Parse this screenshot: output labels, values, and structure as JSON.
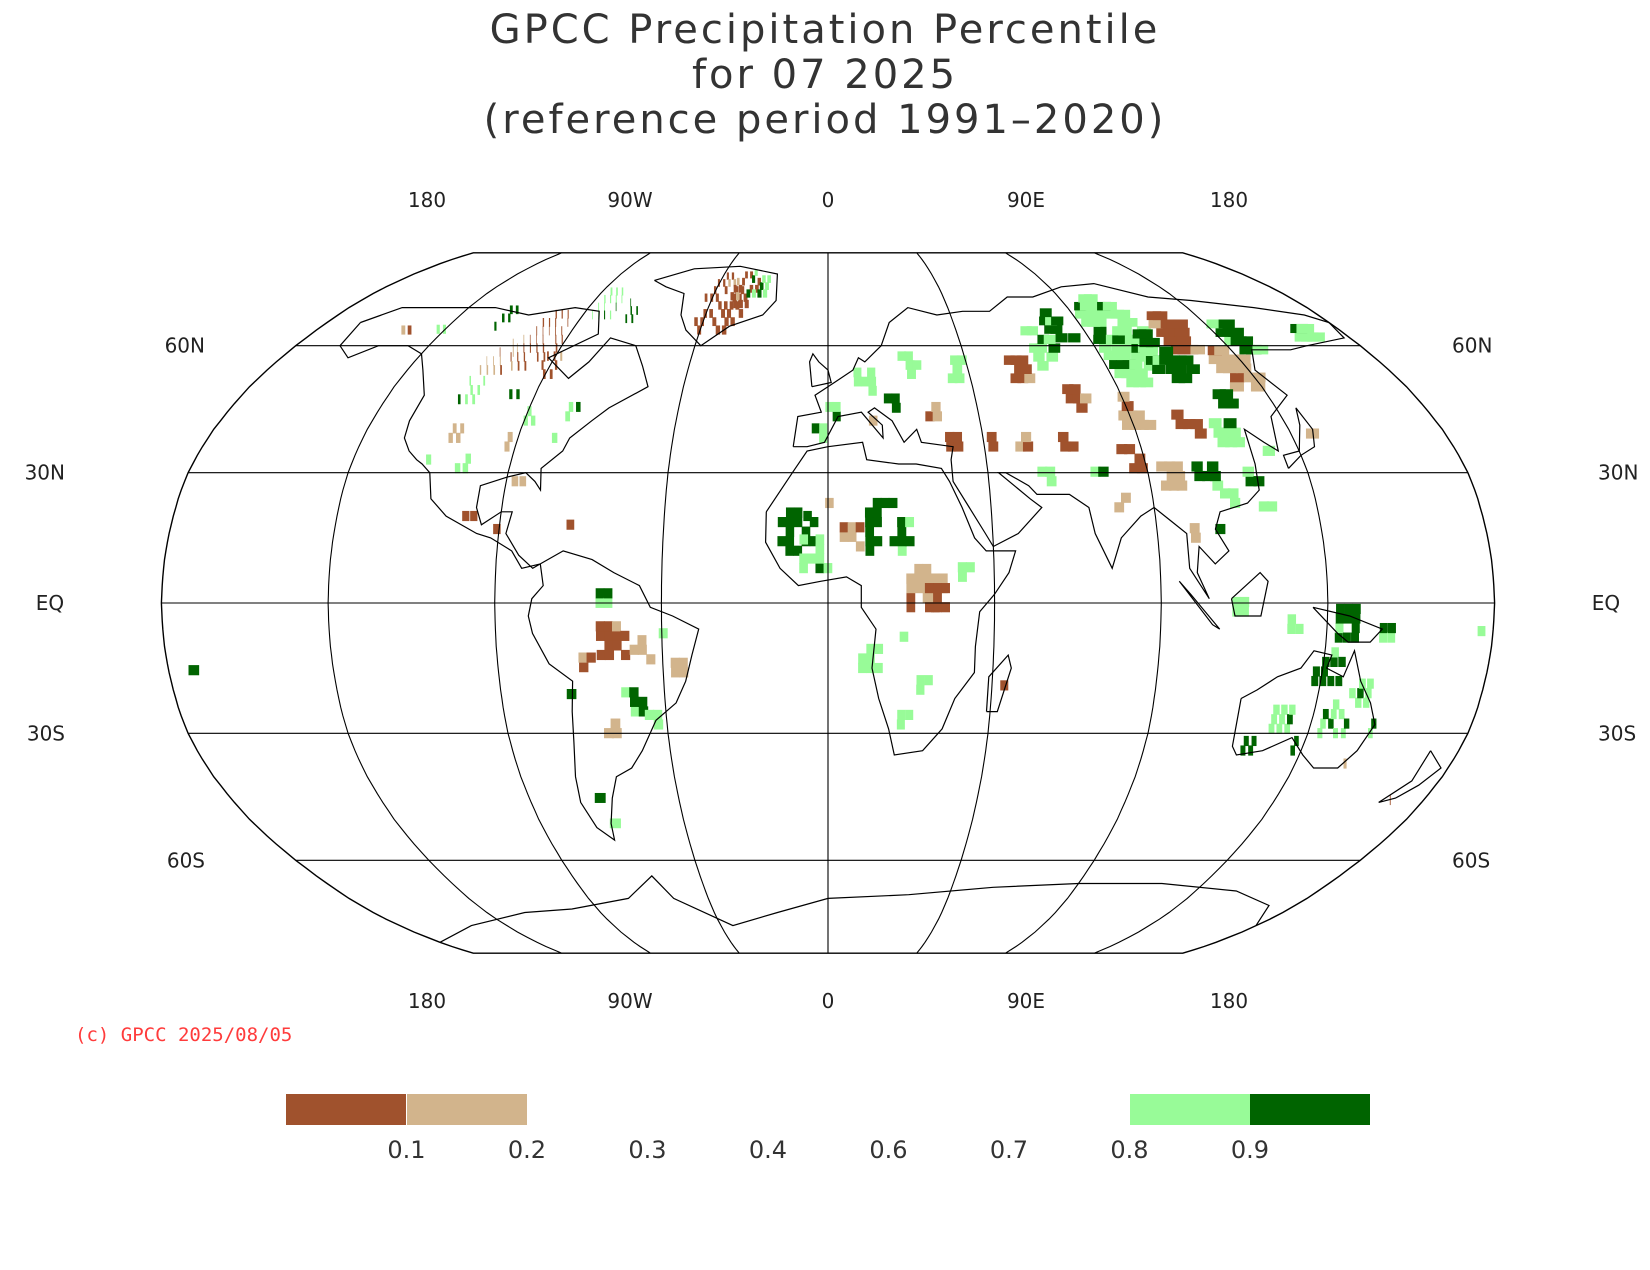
{
  "title": {
    "line1": "GPCC Precipitation Percentile",
    "line2": "for 07 2025",
    "line3": "(reference period 1991–2020)"
  },
  "axes": {
    "top_lon_labels": [
      "180",
      "90W",
      "0",
      "90E",
      "180"
    ],
    "bottom_lon_labels": [
      "180",
      "90W",
      "0",
      "90E",
      "180"
    ],
    "lat_labels_left": [
      "60N",
      "30N",
      "EQ",
      "30S",
      "60S"
    ],
    "lat_labels_right": [
      "60N",
      "30N",
      "EQ",
      "30S",
      "60S"
    ]
  },
  "copyright": "(c) GPCC 2025/08/05",
  "legend": {
    "swatches": [
      {
        "color": "#a0522d"
      },
      {
        "color": "#d2b48c"
      },
      {
        "color": "#ffffff"
      },
      {
        "color": "#ffffff"
      },
      {
        "color": "#ffffff"
      },
      {
        "color": "#ffffff"
      },
      {
        "color": "#ffffff"
      },
      {
        "color": "#98fb98"
      },
      {
        "color": "#006400"
      }
    ],
    "ticks": [
      "0.1",
      "0.2",
      "0.3",
      "0.4",
      "0.6",
      "0.7",
      "0.8",
      "0.9"
    ]
  },
  "colors": {
    "very_dry": "#a0522d",
    "dry": "#d2b48c",
    "wet": "#98fb98",
    "very_wet": "#006400",
    "grid": "#000000",
    "coast": "#000000"
  }
}
